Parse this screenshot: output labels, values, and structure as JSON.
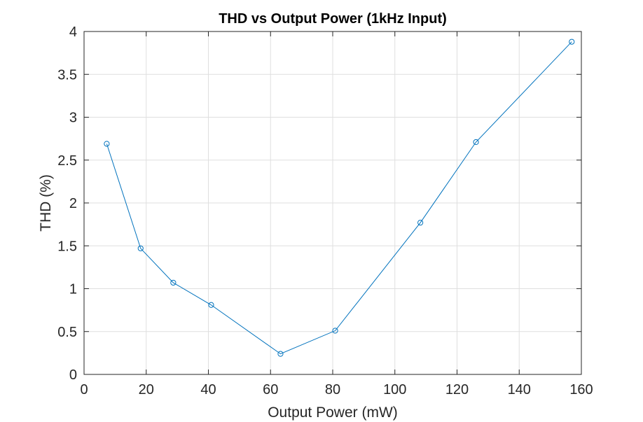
{
  "chart_data": {
    "type": "line",
    "title": "THD vs Output Power (1kHz Input)",
    "xlabel": "Output Power (mW)",
    "ylabel": "THD (%)",
    "xlim": [
      0,
      160
    ],
    "ylim": [
      0,
      4
    ],
    "xticks": [
      0,
      20,
      40,
      60,
      80,
      100,
      120,
      140,
      160
    ],
    "yticks": [
      0,
      0.5,
      1,
      1.5,
      2,
      2.5,
      3,
      3.5,
      4
    ],
    "xtick_labels": [
      "0",
      "20",
      "40",
      "60",
      "80",
      "100",
      "120",
      "140",
      "160"
    ],
    "ytick_labels": [
      "0",
      "0.5",
      "1",
      "1.5",
      "2",
      "2.5",
      "3",
      "3.5",
      "4"
    ],
    "grid": true,
    "marker": "circle",
    "series": [
      {
        "color": "#0072BD",
        "x": [
          7.3,
          18.2,
          28.7,
          40.9,
          63.2,
          80.8,
          108.2,
          126.1,
          156.9
        ],
        "y": [
          2.69,
          1.47,
          1.07,
          0.81,
          0.24,
          0.51,
          1.77,
          2.71,
          3.88
        ]
      }
    ]
  }
}
